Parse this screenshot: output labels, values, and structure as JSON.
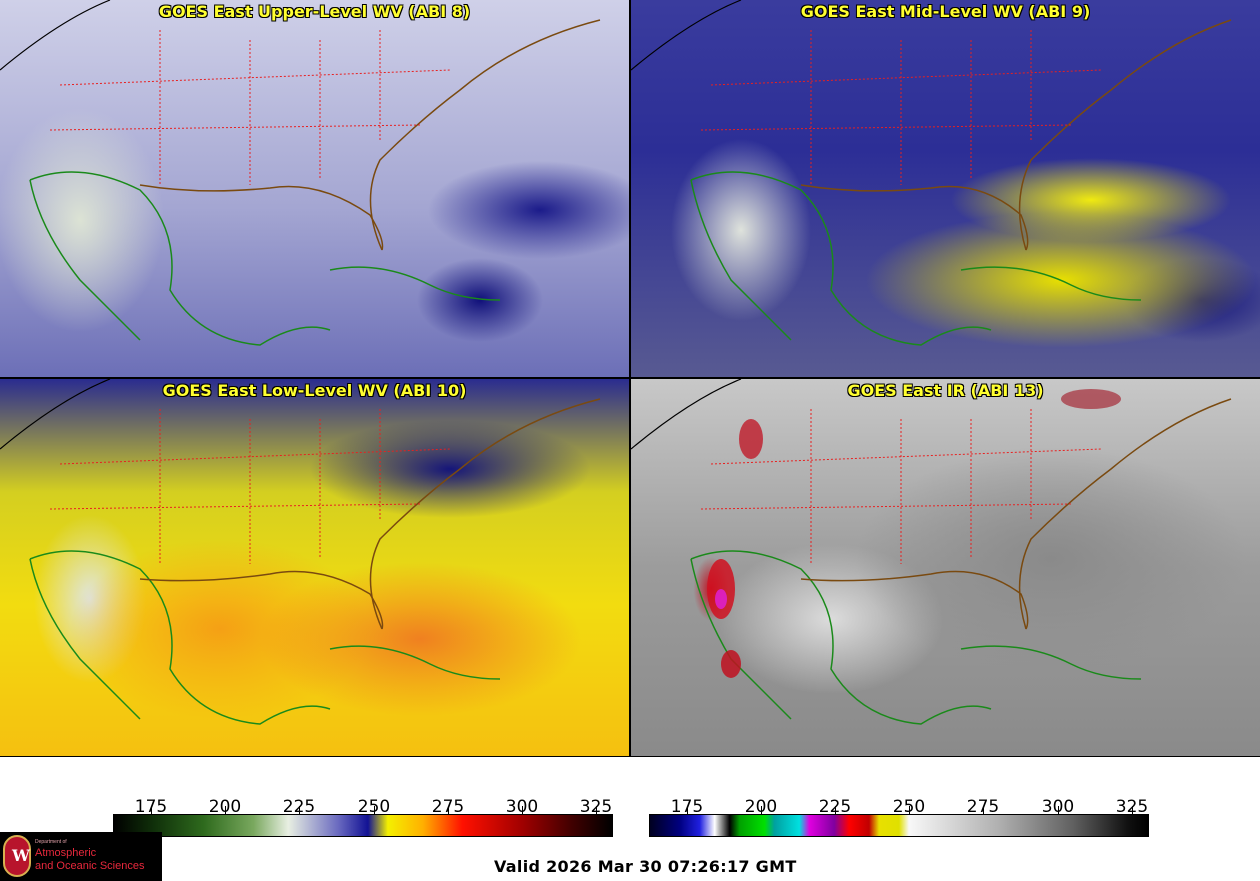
{
  "panels": [
    {
      "title": "GOES East Upper-Level WV (ABI 8)"
    },
    {
      "title": "GOES East Mid-Level WV (ABI 9)"
    },
    {
      "title": "GOES East Low-Level WV (ABI 10)"
    },
    {
      "title": "GOES East IR (ABI 13)"
    }
  ],
  "colorbars": [
    {
      "ticks": [
        "175",
        "200",
        "225",
        "250",
        "275",
        "300",
        "325"
      ]
    },
    {
      "ticks": [
        "175",
        "200",
        "225",
        "250",
        "275",
        "300",
        "325"
      ]
    }
  ],
  "valid_time": "Valid 2026 Mar 30 07:26:17 GMT",
  "logo": {
    "department": "Department of",
    "line1": "Atmospheric",
    "line2": "and Oceanic Sciences",
    "seal_letter": "W"
  },
  "colors": {
    "title_text": "#ffff30",
    "state_borders": "#e82020",
    "coastlines": "#1a8a1a",
    "logo_red": "#e8283c"
  }
}
